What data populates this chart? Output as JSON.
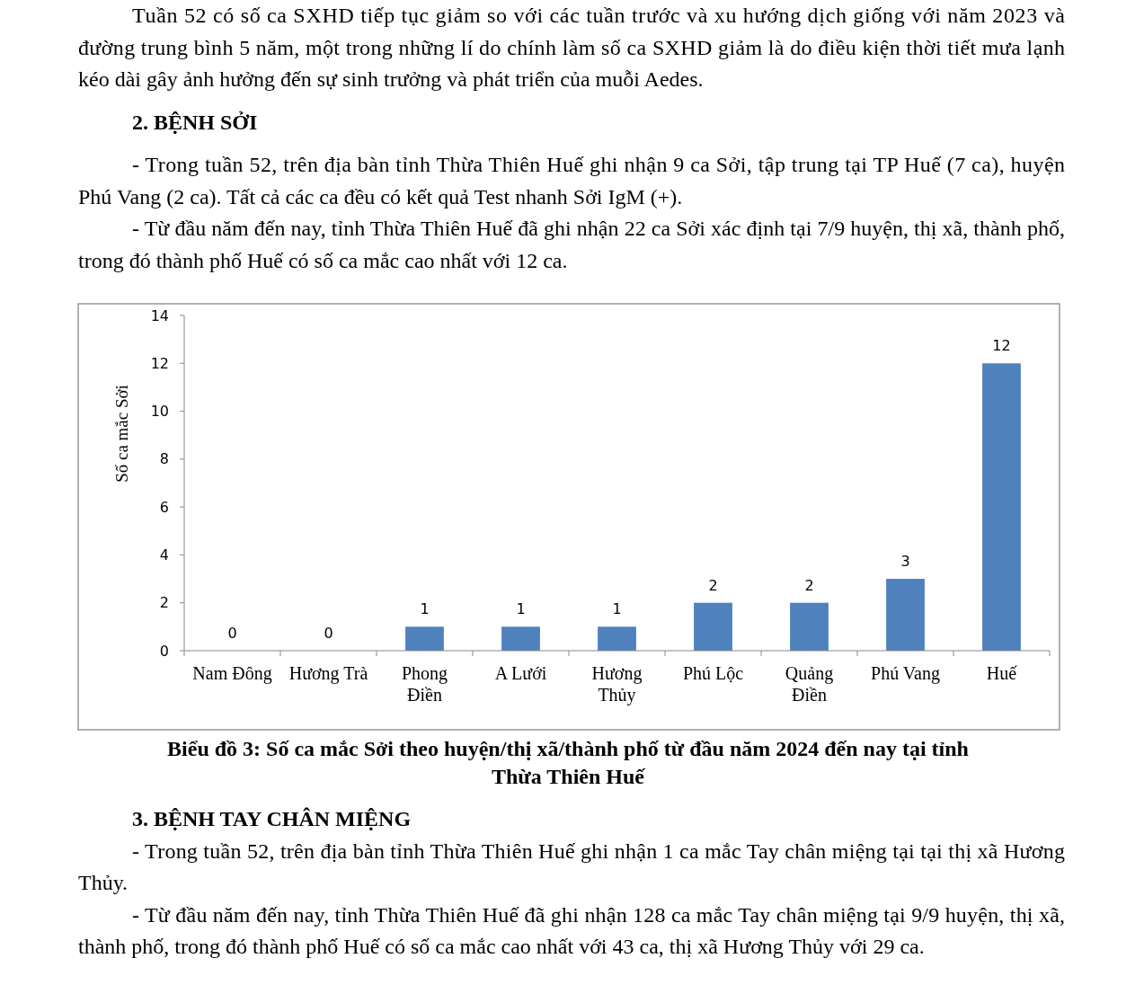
{
  "chart_data": {
    "type": "bar",
    "title": "Biểu đồ 3: Số ca mắc Sởi theo huyện/thị xã/thành phố từ đầu năm 2024 đến nay tại tỉnh Thừa Thiên Huế",
    "ylabel": "Số ca mắc Sởi",
    "categories": [
      "Nam Đông",
      "Hương Trà",
      "Phong Điền",
      "A Lưới",
      "Hương Thủy",
      "Phú Lộc",
      "Quảng Điền",
      "Phú Vang",
      "Huế"
    ],
    "values": [
      0,
      0,
      1,
      1,
      1,
      2,
      2,
      3,
      12
    ],
    "color": "#4f81bd",
    "ylim": [
      0,
      14
    ],
    "yticks": [
      0,
      2,
      4,
      6,
      8,
      10,
      12,
      14
    ],
    "data_labels": true,
    "grid": false,
    "annotations": [
      "Tuần 52 có số ca SXHD tiếp tục giảm so với các tuần trước và xu hướng dịch giống với năm 2023 và đường trung bình 5 năm, một trong những lí do chính làm số ca SXHD giảm là do điều kiện thời tiết mưa lạnh kéo dài gây ảnh hưởng đến sự sinh trưởng và phát triển của muỗi Aedes.",
      "2. BỆNH SỞI",
      "- Trong tuần 52, trên địa bàn tỉnh Thừa Thiên Huế ghi nhận 9 ca Sởi, tập trung tại TP Huế (7 ca), huyện Phú Vang (2 ca). Tất cả các ca đều có kết quả Test nhanh Sởi IgM (+).",
      "- Từ đầu năm đến nay, tỉnh Thừa Thiên Huế đã ghi nhận 22 ca Sởi xác định tại 7/9 huyện, thị xã, thành phố, trong đó thành phố Huế có số ca mắc cao nhất với 12 ca.",
      "3. BỆNH TAY CHÂN MIỆNG",
      "- Trong tuần 52, trên địa bàn tỉnh Thừa Thiên Huế ghi nhận 1 ca mắc Tay chân miệng tại tại thị xã Hương Thủy.",
      "- Từ đầu năm đến nay, tỉnh Thừa Thiên Huế đã ghi nhận 128 ca mắc Tay chân miệng tại 9/9 huyện, thị xã, thành phố, trong đó thành phố Huế có số ca mắc cao nhất với 43 ca, thị xã Hương Thủy với 29 ca."
    ]
  }
}
